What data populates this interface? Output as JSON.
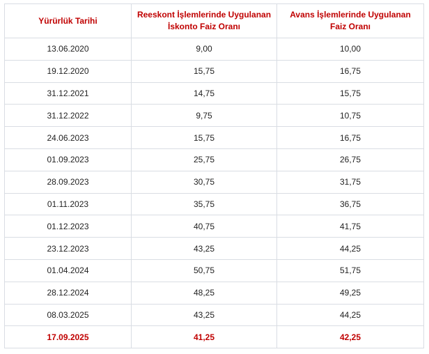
{
  "table": {
    "header": [
      "Yürürlük Tarihi",
      "Reeskont İşlemlerinde Uygulanan İskonto Faiz Oranı",
      "Avans İşlemlerinde Uygulanan Faiz Oranı"
    ],
    "rows": [
      [
        "13.06.2020",
        "9,00",
        "10,00"
      ],
      [
        "19.12.2020",
        "15,75",
        "16,75"
      ],
      [
        "31.12.2021",
        "14,75",
        "15,75"
      ],
      [
        "31.12.2022",
        "9,75",
        "10,75"
      ],
      [
        "24.06.2023",
        "15,75",
        "16,75"
      ],
      [
        "01.09.2023",
        "25,75",
        "26,75"
      ],
      [
        "28.09.2023",
        "30,75",
        "31,75"
      ],
      [
        "01.11.2023",
        "35,75",
        "36,75"
      ],
      [
        "01.12.2023",
        "40,75",
        "41,75"
      ],
      [
        "23.12.2023",
        "43,25",
        "44,25"
      ],
      [
        "01.04.2024",
        "50,75",
        "51,75"
      ],
      [
        "28.12.2024",
        "48,25",
        "49,25"
      ],
      [
        "08.03.2025",
        "43,25",
        "44,25"
      ],
      [
        "17.09.2025",
        "41,25",
        "42,25"
      ]
    ]
  }
}
